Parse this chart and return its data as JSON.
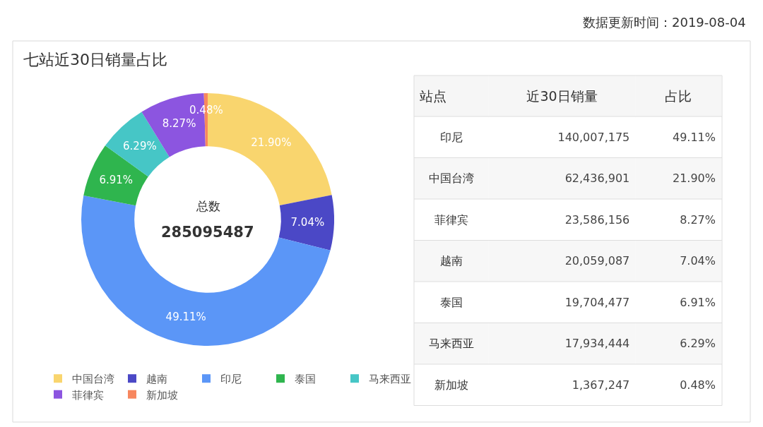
{
  "chart_data": [
    {
      "type": "donut",
      "title": "七站近30日销量占比",
      "categories": [
        "中国台湾",
        "越南",
        "印尼",
        "泰国",
        "马来西亚",
        "菲律宾",
        "新加坡"
      ],
      "values": [
        21.9,
        7.04,
        49.11,
        6.91,
        6.29,
        8.27,
        0.48
      ],
      "colors": [
        "#f9d56e",
        "#4b48c6",
        "#5b96f7",
        "#2fb54e",
        "#46c6c6",
        "#8c55e0",
        "#f7875f"
      ],
      "value_labels": [
        "21.90%",
        "7.04%",
        "49.11%",
        "6.91%",
        "6.29%",
        "8.27%",
        "0.48%"
      ],
      "legend": "bottom",
      "annotations": [
        "总数",
        "285095487",
        "数据更新时间：2019-08-04"
      ]
    },
    {
      "type": "other",
      "ylabel": "站点",
      "categories": [
        "印尼",
        "中国台湾",
        "菲律宾",
        "越南",
        "泰国",
        "马来西亚",
        "新加坡"
      ],
      "series": [
        {
          "name": "近30日销量",
          "colors": [
            "#ffffff",
            "#f7f7f7",
            "#ffffff",
            "#f7f7f7",
            "#ffffff",
            "#f7f7f7",
            "#ffffff"
          ],
          "values": [
            140007175,
            62436901,
            23586156,
            20059087,
            19704477,
            17934444,
            1367247
          ],
          "value_labels": [
            "140,007,175",
            "62,436,901",
            "23,586,156",
            "20,059,087",
            "19,704,477",
            "17,934,444",
            "1,367,247"
          ]
        },
        {
          "name": "占比",
          "colors": [
            "#ffffff",
            "#f7f7f7",
            "#ffffff",
            "#f7f7f7",
            "#ffffff",
            "#f7f7f7",
            "#ffffff"
          ],
          "values": [
            49.11,
            21.9,
            8.27,
            7.04,
            6.91,
            6.29,
            0.48
          ],
          "value_labels": [
            "49.11%",
            "21.90%",
            "8.27%",
            "7.04%",
            "6.91%",
            "6.29%",
            "0.48%"
          ]
        }
      ]
    }
  ]
}
